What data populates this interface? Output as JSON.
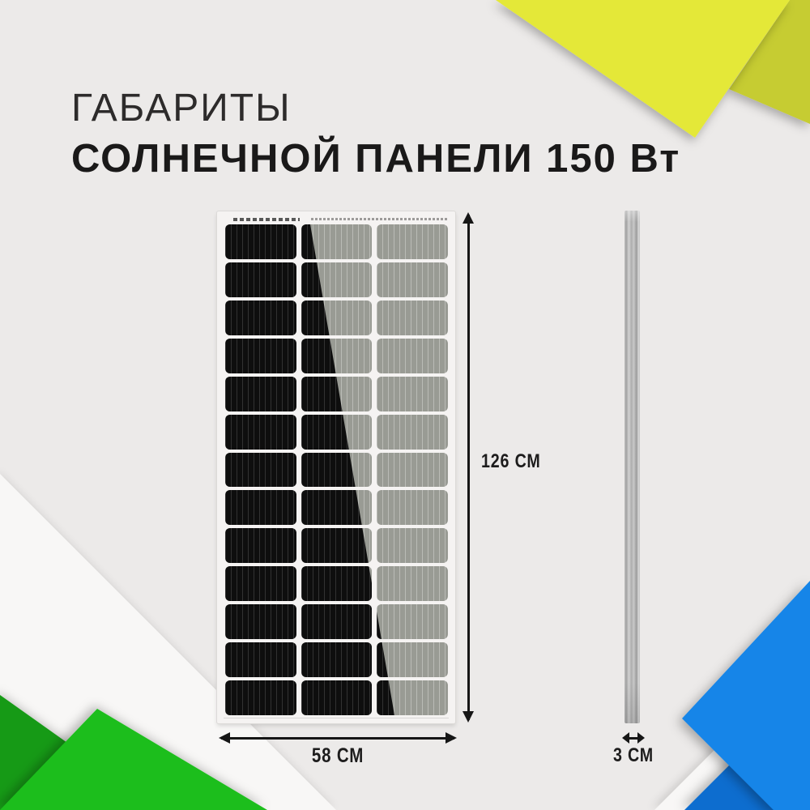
{
  "header": {
    "title_line1": "ГАБАРИТЫ",
    "title_line2": "СОЛНЕЧНОЙ ПАНЕЛИ 150 Вт"
  },
  "dimensions": {
    "height_label": "126 СМ",
    "width_label": "58 СМ",
    "depth_label": "3 СМ"
  },
  "panel": {
    "rows": 13,
    "columns": 3,
    "front_view": "solar panel front with diagonal light reflection",
    "side_view": "thin aluminum profile bar"
  },
  "colors": {
    "background": "#eceae9",
    "yellow_bright": "#e4e838",
    "yellow_dark": "#c6cc31",
    "green_bright": "#1cbe1c",
    "green_dark": "#169a16",
    "blue_bright": "#1585e8",
    "blue_dark": "#0c6dcf",
    "white_layer": "#f8f7f6",
    "panel_frame": "#f5f3f2",
    "cell_dark": "#0e0e0e",
    "cell_gray": "#999b94",
    "arrow": "#161616",
    "text_dark": "#1a1919"
  }
}
